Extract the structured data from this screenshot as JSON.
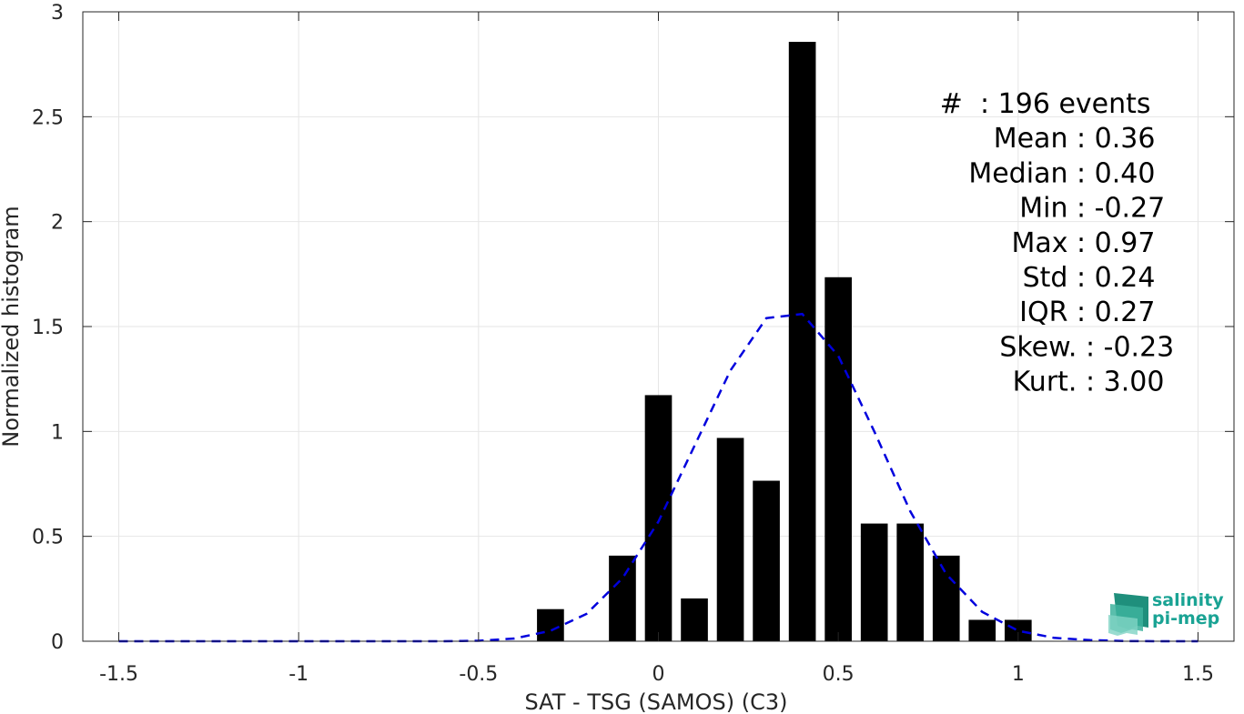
{
  "chart_data": {
    "type": "bar",
    "xlabel": "SAT - TSG (SAMOS) (C3)",
    "ylabel": "Normalized histogram",
    "xlim": [
      -1.6,
      1.6
    ],
    "ylim": [
      0,
      3
    ],
    "xticks": [
      -1.5,
      -1,
      -0.5,
      0,
      0.5,
      1,
      1.5
    ],
    "xtick_labels": [
      "-1.5",
      "-1",
      "-0.5",
      "0",
      "0.5",
      "1",
      "1.5"
    ],
    "yticks": [
      0,
      0.5,
      1,
      1.5,
      2,
      2.5,
      3
    ],
    "ytick_labels": [
      "0",
      "0.5",
      "1",
      "1.5",
      "2",
      "2.5",
      "3"
    ],
    "grid": true,
    "bar_color": "#000000",
    "bar_width": 0.075,
    "bars": {
      "x": [
        -0.3,
        -0.1,
        0.0,
        0.1,
        0.2,
        0.3,
        0.4,
        0.5,
        0.6,
        0.7,
        0.8,
        0.9,
        1.0
      ],
      "values": [
        0.153,
        0.408,
        1.173,
        0.204,
        0.969,
        0.765,
        2.857,
        1.735,
        0.561,
        0.561,
        0.408,
        0.102,
        0.102
      ]
    },
    "fit_curve": {
      "color": "#0000dd",
      "style": "dashed",
      "x": [
        -1.5,
        -1.4,
        -1.3,
        -1.2,
        -1.1,
        -1.0,
        -0.9,
        -0.8,
        -0.7,
        -0.6,
        -0.5,
        -0.4,
        -0.3,
        -0.2,
        -0.1,
        0.0,
        0.1,
        0.2,
        0.3,
        0.4,
        0.5,
        0.6,
        0.7,
        0.8,
        0.9,
        1.0,
        1.1,
        1.2,
        1.3,
        1.4,
        1.5
      ],
      "values": [
        0,
        0,
        0,
        0,
        0,
        0,
        0,
        0,
        0,
        0,
        0.002,
        0.013,
        0.05,
        0.13,
        0.3,
        0.57,
        0.93,
        1.29,
        1.54,
        1.56,
        1.36,
        1.0,
        0.62,
        0.32,
        0.14,
        0.05,
        0.016,
        0.005,
        0.001,
        0,
        0
      ]
    },
    "stats": [
      {
        "label": "#  ",
        "value": ": 196 events"
      },
      {
        "label": "Mean ",
        "value": ": 0.36"
      },
      {
        "label": "Median ",
        "value": ": 0.40"
      },
      {
        "label": "Min ",
        "value": ": -0.27"
      },
      {
        "label": "Max ",
        "value": ": 0.97"
      },
      {
        "label": "Std ",
        "value": ": 0.24"
      },
      {
        "label": "IQR ",
        "value": ": 0.27"
      },
      {
        "label": "Skew. ",
        "value": ": -0.23"
      },
      {
        "label": "Kurt. ",
        "value": ": 3.00"
      }
    ]
  },
  "logo": {
    "line1": "salinity",
    "line2": "pi-mep",
    "color": "#1aa394"
  }
}
